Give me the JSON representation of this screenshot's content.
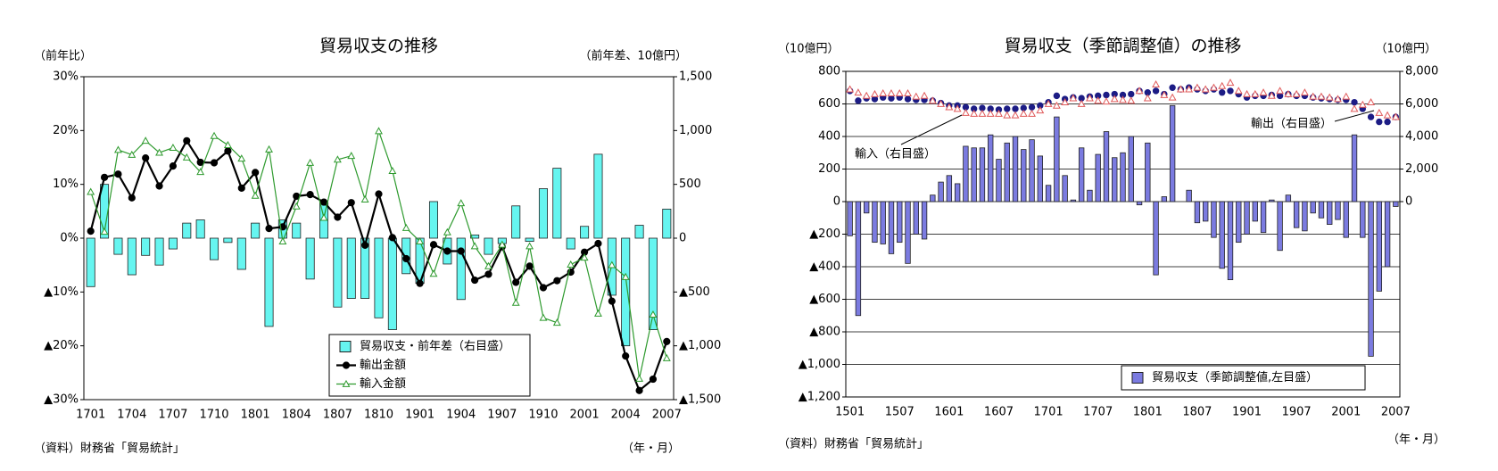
{
  "chart_data": [
    {
      "type": "combo",
      "title": "貿易収支の推移",
      "ylabel": "（前年比）",
      "y2label": "（前年差、10億円）",
      "source": "（資料）財務省「貿易統計」",
      "xlabel": "（年・月）",
      "grid": false,
      "legend": "lower right",
      "categories": [
        "1701",
        null,
        null,
        "1704",
        null,
        null,
        "1707",
        null,
        null,
        "1710",
        null,
        null,
        "1801",
        null,
        null,
        "1804",
        null,
        null,
        "1807",
        null,
        null,
        "1810",
        null,
        null,
        "1901",
        null,
        null,
        "1904",
        null,
        null,
        "1907",
        null,
        null,
        "1910",
        null,
        null,
        "2001",
        null,
        null,
        "2004",
        null,
        null,
        "2007"
      ],
      "ylim": [
        -30,
        30
      ],
      "yticks": [
        {
          "value": 30,
          "label": "30%"
        },
        {
          "value": 20,
          "label": "20%"
        },
        {
          "value": 10,
          "label": "10%"
        },
        {
          "value": 0,
          "label": "0%"
        },
        {
          "value": -10,
          "label": "▲10%"
        },
        {
          "value": -20,
          "label": "▲20%"
        },
        {
          "value": -30,
          "label": "▲30%"
        }
      ],
      "y2lim": [
        -1500,
        1500
      ],
      "y2ticks": [
        {
          "value": 1500,
          "label": "1,500"
        },
        {
          "value": 1000,
          "label": "1,000"
        },
        500,
        0,
        {
          "value": -500,
          "label": "▲500"
        },
        {
          "value": -1000,
          "label": "▲1,000"
        },
        {
          "value": -1500,
          "label": "▲1,500"
        }
      ],
      "series": [
        {
          "name": "貿易収支・前年差（右目盛）",
          "type": "bar",
          "axis": "y2",
          "color": "#66f5f0",
          "values": [
            -450,
            500,
            -150,
            -340,
            -160,
            -250,
            -100,
            140,
            170,
            -200,
            -40,
            -290,
            140,
            -820,
            170,
            140,
            -380,
            330,
            -640,
            -560,
            -560,
            -740,
            -850,
            -330,
            -420,
            340,
            -240,
            -570,
            30,
            -150,
            -50,
            300,
            -30,
            460,
            650,
            -100,
            110,
            780,
            -530,
            -1000,
            120,
            -850,
            270
          ]
        },
        {
          "name": "輸出金額",
          "type": "line",
          "axis": "y",
          "color": "#000000",
          "marker": "circle",
          "hollow": false,
          "line": true,
          "values": [
            1.3,
            11.3,
            11.9,
            7.5,
            14.9,
            9.7,
            13.4,
            18.1,
            14.1,
            14.0,
            16.2,
            9.3,
            12.2,
            1.8,
            2.1,
            7.8,
            8.1,
            6.7,
            3.9,
            6.6,
            -1.3,
            8.2,
            0.1,
            -3.8,
            -8.4,
            -1.2,
            -2.4,
            -2.4,
            -7.8,
            -6.7,
            -1.6,
            -8.2,
            -5.2,
            -9.2,
            -7.9,
            -6.3,
            -2.6,
            -1.0,
            -11.7,
            -21.9,
            -28.3,
            -26.2,
            -19.2
          ]
        },
        {
          "name": "輸入金額",
          "type": "line",
          "axis": "y",
          "color": "#2e9a2e",
          "marker": "triangle",
          "hollow": true,
          "line": true,
          "values": [
            8.6,
            1.2,
            16.4,
            15.5,
            18.1,
            15.9,
            16.8,
            15.0,
            12.3,
            19.0,
            17.3,
            14.8,
            7.9,
            16.5,
            -0.6,
            5.9,
            14.0,
            3.8,
            14.6,
            15.3,
            7.2,
            19.9,
            12.5,
            1.9,
            -0.6,
            -6.6,
            1.1,
            6.5,
            -1.5,
            -5.2,
            -1.2,
            -12.0,
            -1.5,
            -14.8,
            -15.7,
            -4.9,
            -3.6,
            -14.0,
            -5.0,
            -7.2,
            -26.1,
            -14.2,
            -22.3
          ]
        }
      ]
    },
    {
      "type": "combo",
      "title": "貿易収支（季節調整値）の推移",
      "ylabel": "（10億円）",
      "y2label": "（10億円）",
      "source": "（資料）財務省「貿易統計」",
      "xlabel": "（年・月）",
      "grid": true,
      "legend": "lower right",
      "categories": [
        "1501",
        null,
        null,
        null,
        null,
        null,
        "1507",
        null,
        null,
        null,
        null,
        null,
        "1601",
        null,
        null,
        null,
        null,
        null,
        "1607",
        null,
        null,
        null,
        null,
        null,
        "1701",
        null,
        null,
        null,
        null,
        null,
        "1707",
        null,
        null,
        null,
        null,
        null,
        "1801",
        null,
        null,
        null,
        null,
        null,
        "1807",
        null,
        null,
        null,
        null,
        null,
        "1901",
        null,
        null,
        null,
        null,
        null,
        "1907",
        null,
        null,
        null,
        null,
        null,
        "2001",
        null,
        null,
        null,
        null,
        null,
        "2007"
      ],
      "ylim": [
        -1200,
        800
      ],
      "yticks": [
        800,
        600,
        400,
        200,
        0,
        {
          "value": -200,
          "label": "▲200"
        },
        {
          "value": -400,
          "label": "▲400"
        },
        {
          "value": -600,
          "label": "▲600"
        },
        {
          "value": -800,
          "label": "▲800"
        },
        {
          "value": -1000,
          "label": "▲1,000"
        },
        {
          "value": -1200,
          "label": "▲1,200"
        }
      ],
      "y2lim": [
        -12000,
        8000
      ],
      "y2ticks": [
        {
          "value": 8000,
          "label": "8,000"
        },
        {
          "value": 6000,
          "label": "6,000"
        },
        {
          "value": 4000,
          "label": "4,000"
        },
        {
          "value": 2000,
          "label": "2,000"
        },
        0
      ],
      "annotations": [
        "輸入（右目盛）",
        "輸出（右目盛）"
      ],
      "series": [
        {
          "name": "貿易収支（季節調整値,左目盛）",
          "type": "bar",
          "axis": "y",
          "color": "#7b7be0",
          "values": [
            -210,
            -700,
            -70,
            -250,
            -260,
            -320,
            -250,
            -380,
            -200,
            -230,
            40,
            120,
            160,
            110,
            340,
            330,
            330,
            410,
            260,
            360,
            400,
            320,
            380,
            280,
            100,
            520,
            160,
            10,
            330,
            70,
            290,
            430,
            270,
            300,
            400,
            -20,
            360,
            -450,
            30,
            590,
            0,
            70,
            -130,
            -120,
            -220,
            -410,
            -480,
            -250,
            -200,
            -120,
            -190,
            10,
            -300,
            40,
            -160,
            -180,
            -70,
            -100,
            -140,
            -110,
            -220,
            410,
            -220,
            -950,
            -550,
            -400,
            -30
          ]
        },
        {
          "type": "line",
          "axis": "y2",
          "color": "#1c1c85",
          "marker": "circle",
          "hollow": false,
          "line": false,
          "values": [
            6800,
            6200,
            6350,
            6300,
            6400,
            6350,
            6400,
            6300,
            6250,
            6250,
            6200,
            6050,
            5900,
            5900,
            5800,
            5700,
            5750,
            5700,
            5650,
            5700,
            5700,
            5750,
            5800,
            5900,
            6100,
            6500,
            6300,
            6400,
            6350,
            6450,
            6500,
            6550,
            6600,
            6550,
            6600,
            6800,
            6700,
            6800,
            6600,
            7000,
            6900,
            7000,
            6900,
            6800,
            6900,
            6700,
            6800,
            6600,
            6400,
            6500,
            6500,
            6550,
            6500,
            6600,
            6500,
            6500,
            6400,
            6350,
            6300,
            6250,
            6250,
            6100,
            5700,
            5200,
            4900,
            4900,
            5200
          ]
        },
        {
          "type": "line",
          "axis": "y2",
          "color": "#e05a5a",
          "marker": "triangle",
          "hollow": true,
          "line": false,
          "values": [
            6900,
            6700,
            6500,
            6600,
            6650,
            6650,
            6650,
            6650,
            6450,
            6500,
            6200,
            6000,
            5800,
            5700,
            5450,
            5400,
            5400,
            5400,
            5400,
            5300,
            5300,
            5400,
            5400,
            5600,
            6000,
            5900,
            6100,
            6350,
            6000,
            6350,
            6200,
            6150,
            6300,
            6250,
            6200,
            6800,
            6350,
            7200,
            6550,
            6400,
            6900,
            6900,
            7000,
            6900,
            7000,
            7100,
            7300,
            6800,
            6600,
            6600,
            6700,
            6500,
            6800,
            6600,
            6600,
            6700,
            6450,
            6450,
            6400,
            6300,
            6450,
            5700,
            5950,
            6100,
            5450,
            5300,
            5200
          ]
        }
      ]
    }
  ]
}
